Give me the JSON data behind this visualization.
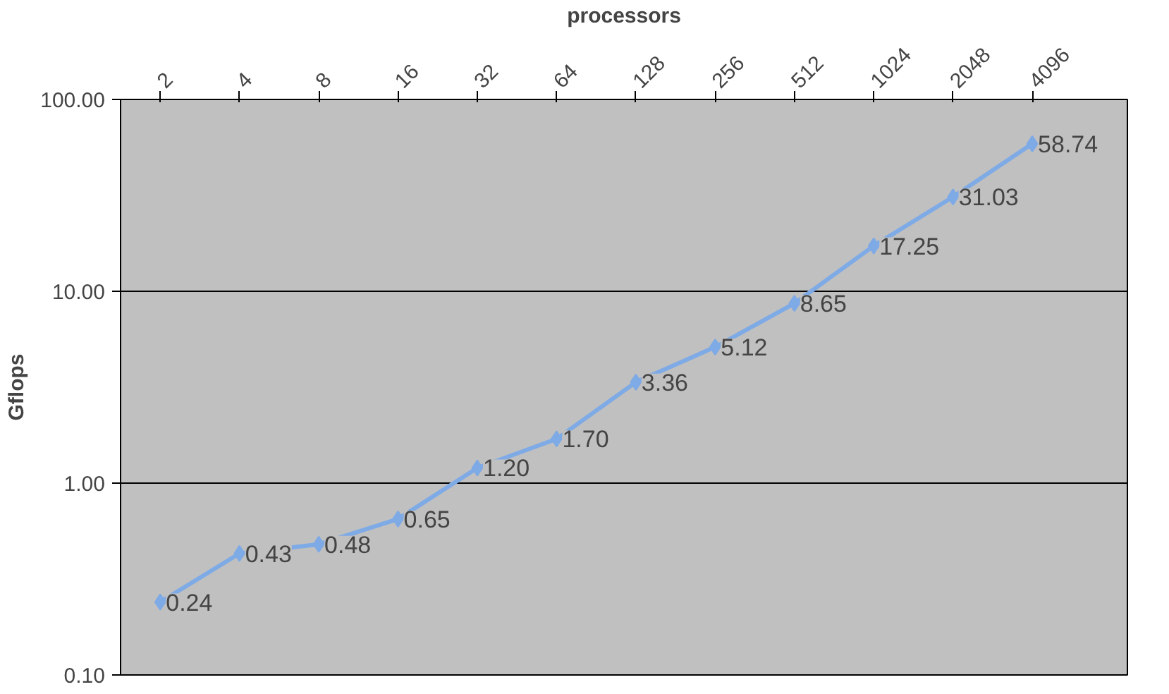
{
  "chart_data": {
    "type": "line",
    "xlabel": "processors",
    "ylabel": "Gflops",
    "categories": [
      "2",
      "4",
      "8",
      "16",
      "32",
      "64",
      "128",
      "256",
      "512",
      "1024",
      "2048",
      "4096"
    ],
    "series": [
      {
        "color": "#7eaae6",
        "values": [
          0.24,
          0.43,
          0.48,
          0.65,
          1.2,
          1.7,
          3.36,
          5.12,
          8.65,
          17.25,
          31.03,
          58.74
        ],
        "value_labels": [
          "0.24",
          "0.43",
          "0.48",
          "0.65",
          "1.20",
          "1.70",
          "3.36",
          "5.12",
          "8.65",
          "17.25",
          "31.03",
          "58.74"
        ]
      }
    ],
    "log": "y",
    "ylim": [
      0.1,
      100
    ],
    "yticks": [
      {
        "value": 0.1,
        "label": "0.10"
      },
      {
        "value": 1,
        "label": "1.00"
      },
      {
        "value": 10,
        "label": "10.00"
      },
      {
        "value": 100,
        "label": "100.00"
      }
    ],
    "grid": "y",
    "marker": "diamond",
    "line_style": "solid"
  }
}
